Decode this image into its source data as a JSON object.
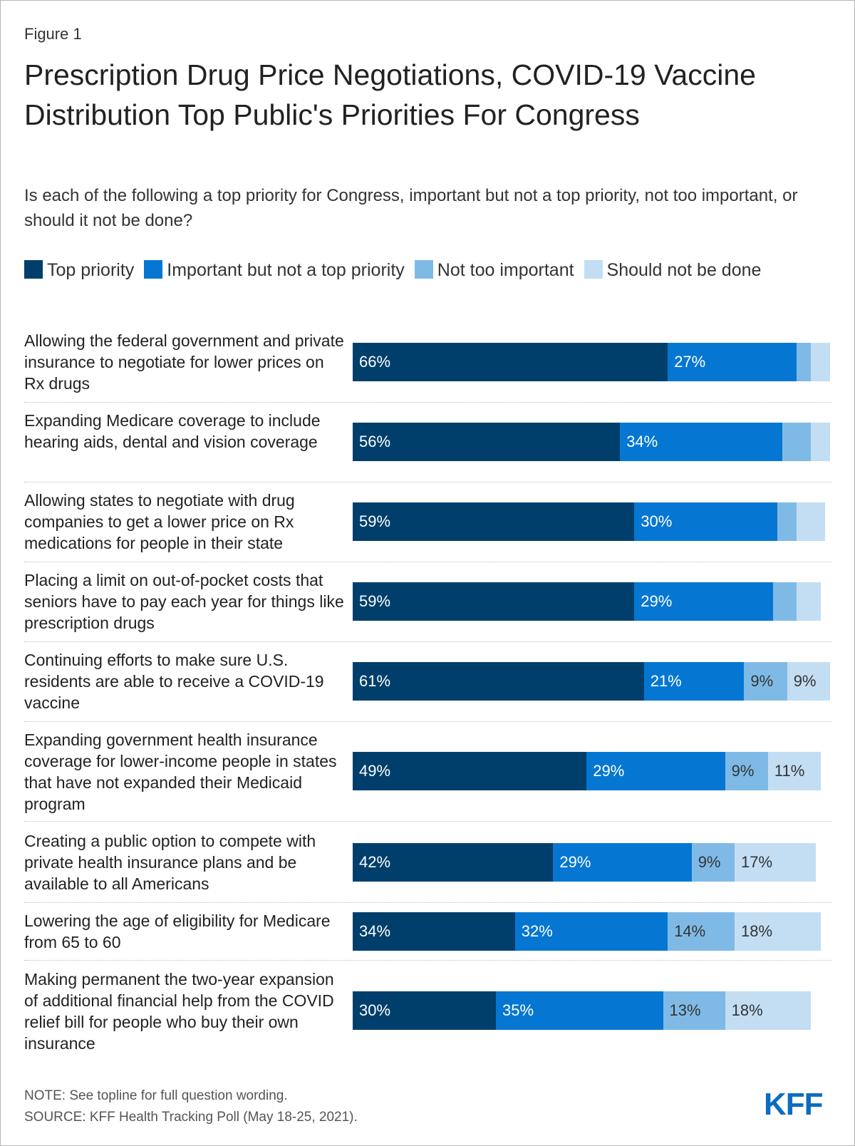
{
  "figure_label": "Figure 1",
  "note": "NOTE: See topline for full question wording.",
  "source": "SOURCE: KFF Health Tracking Poll (May 18-25, 2021).",
  "logo_text": "KFF",
  "chart_data": {
    "type": "bar",
    "orientation": "horizontal",
    "stacked": true,
    "title": "Prescription Drug Price Negotiations, COVID-19 Vaccine Distribution Top Public's Priorities For Congress",
    "subtitle": "Is each of the following a top priority for Congress, important but not a top priority, not too important, or should it not be done?",
    "legend_position": "top",
    "colors": [
      "#003f6b",
      "#0577d2",
      "#7fbae6",
      "#c3def3"
    ],
    "text_colors": [
      "#ffffff",
      "#ffffff",
      "#333333",
      "#333333"
    ],
    "categories": [
      "Allowing the federal government and private insurance to negotiate for lower prices on Rx drugs",
      "Expanding Medicare coverage to include hearing aids, dental and vision coverage",
      "Allowing states to negotiate with drug companies to get a lower price on Rx medications for people in their state",
      "Placing a limit on out-of-pocket costs that seniors have to pay each year for things like prescription drugs",
      "Continuing efforts to make sure U.S. residents are able to receive a COVID-19 vaccine",
      "Expanding government health insurance coverage for lower-income people in states that have not expanded their Medicaid program",
      "Creating a public option to compete with private health insurance plans and be available to all Americans",
      "Lowering the age of eligibility for Medicare from 65 to 60",
      "Making permanent the two-year expansion of additional financial help from the COVID relief bill for people who buy their own insurance"
    ],
    "series": [
      {
        "name": "Top priority",
        "values": [
          66,
          56,
          59,
          59,
          61,
          49,
          42,
          34,
          30
        ],
        "labels": [
          "66%",
          "56%",
          "59%",
          "59%",
          "61%",
          "49%",
          "42%",
          "34%",
          "30%"
        ]
      },
      {
        "name": "Important but not a top priority",
        "values": [
          27,
          34,
          30,
          29,
          21,
          29,
          29,
          32,
          35
        ],
        "labels": [
          "27%",
          "34%",
          "30%",
          "29%",
          "21%",
          "29%",
          "29%",
          "32%",
          "35%"
        ]
      },
      {
        "name": "Not too important",
        "values": [
          3,
          6,
          4,
          5,
          9,
          9,
          9,
          14,
          13
        ],
        "labels": [
          "",
          "",
          "",
          "",
          "9%",
          "9%",
          "9%",
          "14%",
          "13%"
        ]
      },
      {
        "name": "Should not be done",
        "values": [
          4,
          4,
          6,
          5,
          9,
          11,
          17,
          18,
          18
        ],
        "labels": [
          "",
          "",
          "",
          "",
          "9%",
          "11%",
          "17%",
          "18%",
          "18%"
        ]
      }
    ],
    "xlim": [
      0,
      100
    ]
  }
}
